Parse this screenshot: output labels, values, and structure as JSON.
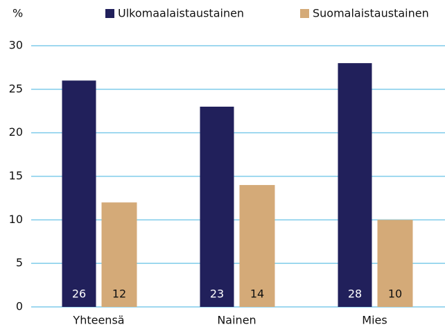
{
  "chart_data": {
    "type": "bar",
    "y_label": "%",
    "categories": [
      "Yhteensä",
      "Nainen",
      "Mies"
    ],
    "series": [
      {
        "name": "Ulkomaalaistaustainen",
        "color": "#21205b",
        "values": [
          26,
          23,
          28
        ]
      },
      {
        "name": "Suomalaistaustainen",
        "color": "#d4aa78",
        "values": [
          12,
          14,
          10
        ]
      }
    ],
    "ylim": [
      0,
      30
    ],
    "yticks": [
      0,
      5,
      10,
      15,
      20,
      25,
      30
    ],
    "grid": true,
    "legend": "top"
  }
}
